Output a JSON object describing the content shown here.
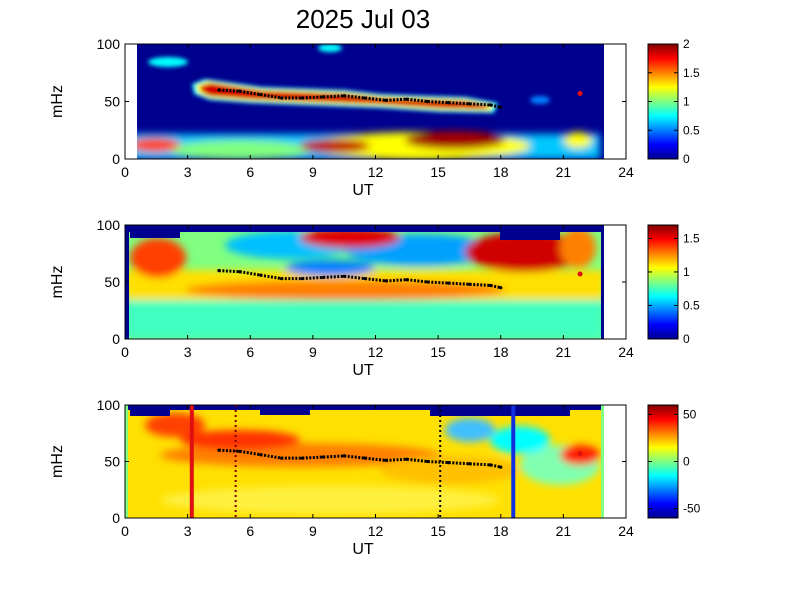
{
  "figure": {
    "title": "2025 Jul 03"
  },
  "chart_data": [
    {
      "type": "heatmap",
      "panel": "top",
      "xlabel": "UT",
      "ylabel": "mHz",
      "xlim": [
        0,
        24
      ],
      "ylim": [
        0,
        100
      ],
      "xticks": [
        0,
        3,
        6,
        9,
        12,
        15,
        18,
        21,
        24
      ],
      "yticks": [
        0,
        50,
        100
      ],
      "colormap": "jet",
      "data_coverage_ut": [
        1.0,
        23.0
      ],
      "colorbar": {
        "clim": [
          0,
          2
        ],
        "ticks": [
          "0",
          "0.5",
          "1",
          "1.5",
          "2"
        ]
      },
      "dominant_frequency_trace": {
        "color": "#000000",
        "points": [
          [
            4.5,
            60
          ],
          [
            5.5,
            59
          ],
          [
            6.5,
            56
          ],
          [
            7.5,
            53
          ],
          [
            8.5,
            53
          ],
          [
            9.5,
            54
          ],
          [
            10.5,
            55
          ],
          [
            11.5,
            53
          ],
          [
            12.5,
            51
          ],
          [
            13.5,
            52
          ],
          [
            14.5,
            50
          ],
          [
            15.5,
            49
          ],
          [
            16.5,
            48
          ],
          [
            17.5,
            47
          ],
          [
            18.0,
            45
          ]
        ]
      },
      "isolated_marker": {
        "x": 21.8,
        "y": 57
      }
    },
    {
      "type": "heatmap",
      "panel": "middle",
      "xlabel": "UT",
      "ylabel": "mHz",
      "xlim": [
        0,
        24
      ],
      "ylim": [
        0,
        100
      ],
      "xticks": [
        0,
        3,
        6,
        9,
        12,
        15,
        18,
        21,
        24
      ],
      "yticks": [
        0,
        50,
        100
      ],
      "colormap": "jet",
      "data_coverage_ut": [
        1.0,
        23.0
      ],
      "colorbar": {
        "clim": [
          0,
          1.7
        ],
        "ticks": [
          "0",
          "0.5",
          "1",
          "1.5"
        ]
      },
      "dominant_frequency_trace": {
        "color": "#000000",
        "points": [
          [
            4.5,
            60
          ],
          [
            5.5,
            59
          ],
          [
            6.5,
            56
          ],
          [
            7.5,
            53
          ],
          [
            8.5,
            53
          ],
          [
            9.5,
            54
          ],
          [
            10.5,
            55
          ],
          [
            11.5,
            53
          ],
          [
            12.5,
            51
          ],
          [
            13.5,
            52
          ],
          [
            14.5,
            50
          ],
          [
            15.5,
            49
          ],
          [
            16.5,
            48
          ],
          [
            17.5,
            47
          ],
          [
            18.0,
            45
          ]
        ]
      },
      "isolated_marker": {
        "x": 21.8,
        "y": 57
      }
    },
    {
      "type": "heatmap",
      "panel": "bottom",
      "xlabel": "UT",
      "ylabel": "mHz",
      "xlim": [
        0,
        24
      ],
      "ylim": [
        0,
        100
      ],
      "xticks": [
        0,
        3,
        6,
        9,
        12,
        15,
        18,
        21,
        24
      ],
      "yticks": [
        0,
        50,
        100
      ],
      "colormap": "jet",
      "data_coverage_ut": [
        1.0,
        23.0
      ],
      "colorbar": {
        "clim": [
          -60,
          60
        ],
        "ticks": [
          "-50",
          "0",
          "50"
        ]
      },
      "dominant_frequency_trace": {
        "color": "#000000",
        "points": [
          [
            4.5,
            60
          ],
          [
            5.5,
            59
          ],
          [
            6.5,
            56
          ],
          [
            7.5,
            53
          ],
          [
            8.5,
            53
          ],
          [
            9.5,
            54
          ],
          [
            10.5,
            55
          ],
          [
            11.5,
            53
          ],
          [
            12.5,
            51
          ],
          [
            13.5,
            52
          ],
          [
            14.5,
            50
          ],
          [
            15.5,
            49
          ],
          [
            16.5,
            48
          ],
          [
            17.5,
            47
          ],
          [
            18.0,
            45
          ]
        ]
      },
      "isolated_marker": {
        "x": 21.8,
        "y": 57
      },
      "vertical_markers": [
        {
          "x": 3.2,
          "style": "solid",
          "color": "#e01010"
        },
        {
          "x": 5.3,
          "style": "dotted",
          "color": "#800000"
        },
        {
          "x": 15.1,
          "style": "dotted",
          "color": "#000000"
        },
        {
          "x": 18.6,
          "style": "solid",
          "color": "#1030e0"
        }
      ]
    }
  ]
}
